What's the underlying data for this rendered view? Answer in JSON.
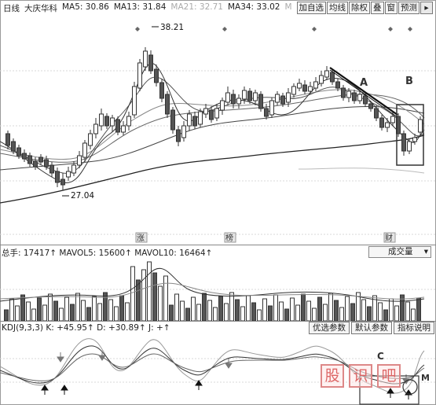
{
  "topbar": {
    "period_label": "日线",
    "stock_name": "大庆华科",
    "ma5": "MA5: 30.86",
    "ma13": "MA13: 31.84",
    "ma21": "MA21: 32.71",
    "ma34": "MA34: 33.02",
    "ma_more": "M",
    "buttons": [
      "加自选",
      "均线",
      "除权",
      "叠",
      "窗",
      "预测"
    ],
    "arrow_icon": "collapse-arrow-icon"
  },
  "main_chart": {
    "high_label": "38.21",
    "low_label": "27.04",
    "annotation_a": "A",
    "annotation_b": "B",
    "time_markers": [
      "涨",
      "榜",
      "财"
    ],
    "colors": {
      "up": "#ffffff",
      "down": "#555555",
      "ma_line": "#444444",
      "box": "#333333"
    }
  },
  "volume": {
    "left_label": "总手: 17417↑ MAVOL5: 15600↑ MAVOL10: 16464↑",
    "dropdown_value": "成交量"
  },
  "kdj": {
    "left_label": "KDJ(9,3,3) K: +45.95↑ D: +30.89↑ J: +↑",
    "buttons": [
      "优选参数",
      "默认参数",
      "指标说明"
    ],
    "annotation_c": "C",
    "annotation_m": "M"
  },
  "watermark": {
    "chars": [
      "股",
      "识",
      "吧"
    ]
  }
}
